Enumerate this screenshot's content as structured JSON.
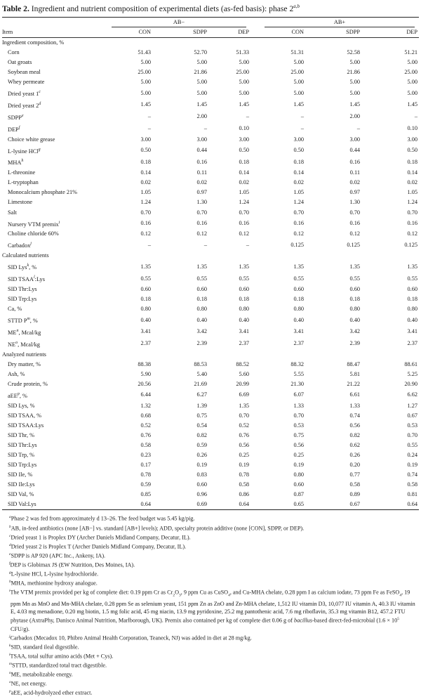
{
  "title": {
    "label": "Table 2.",
    "text": "Ingredient and nutrient composition of experimental diets (as-fed basis): phase 2",
    "sup": "a,b"
  },
  "groups": [
    "AB−",
    "AB+"
  ],
  "item_header": "Item",
  "columns": [
    "CON",
    "SDPP",
    "DEP",
    "CON",
    "SDPP",
    "DEP"
  ],
  "rows": [
    {
      "type": "section",
      "label": "Ingredient composition, %"
    },
    {
      "label": "Corn",
      "sup": "",
      "values": [
        "51.43",
        "52.70",
        "51.33",
        "51.31",
        "52.58",
        "51.21"
      ]
    },
    {
      "label": "Oat groats",
      "sup": "",
      "values": [
        "5.00",
        "5.00",
        "5.00",
        "5.00",
        "5.00",
        "5.00"
      ]
    },
    {
      "label": "Soybean meal",
      "sup": "",
      "values": [
        "25.00",
        "21.86",
        "25.00",
        "25.00",
        "21.86",
        "25.00"
      ]
    },
    {
      "label": "Whey permeate",
      "sup": "",
      "values": [
        "5.00",
        "5.00",
        "5.00",
        "5.00",
        "5.00",
        "5.00"
      ]
    },
    {
      "label": "Dried yeast 1",
      "sup": "c",
      "values": [
        "5.00",
        "5.00",
        "5.00",
        "5.00",
        "5.00",
        "5.00"
      ]
    },
    {
      "label": "Dried yeast 2",
      "sup": "d",
      "values": [
        "1.45",
        "1.45",
        "1.45",
        "1.45",
        "1.45",
        "1.45"
      ]
    },
    {
      "label": "SDPP",
      "sup": "e",
      "values": [
        "–",
        "2.00",
        "–",
        "–",
        "2.00",
        "–"
      ]
    },
    {
      "label": "DEP",
      "sup": "f",
      "values": [
        "–",
        "–",
        "0.10",
        "–",
        "–",
        "0.10"
      ]
    },
    {
      "label": "Choice white grease",
      "sup": "",
      "values": [
        "3.00",
        "3.00",
        "3.00",
        "3.00",
        "3.00",
        "3.00"
      ]
    },
    {
      "label": "L-lysine HCl",
      "sup": "g",
      "values": [
        "0.50",
        "0.44",
        "0.50",
        "0.50",
        "0.44",
        "0.50"
      ]
    },
    {
      "label": "MHA",
      "sup": "h",
      "values": [
        "0.18",
        "0.16",
        "0.18",
        "0.18",
        "0.16",
        "0.18"
      ]
    },
    {
      "label": "L-threonine",
      "sup": "",
      "values": [
        "0.14",
        "0.11",
        "0.14",
        "0.14",
        "0.11",
        "0.14"
      ]
    },
    {
      "label": "L-tryptophan",
      "sup": "",
      "values": [
        "0.02",
        "0.02",
        "0.02",
        "0.02",
        "0.02",
        "0.02"
      ]
    },
    {
      "label": "Monocalcium phosphate 21%",
      "sup": "",
      "values": [
        "1.05",
        "0.97",
        "1.05",
        "1.05",
        "0.97",
        "1.05"
      ]
    },
    {
      "label": "Limestone",
      "sup": "",
      "values": [
        "1.24",
        "1.30",
        "1.24",
        "1.24",
        "1.30",
        "1.24"
      ]
    },
    {
      "label": "Salt",
      "sup": "",
      "values": [
        "0.70",
        "0.70",
        "0.70",
        "0.70",
        "0.70",
        "0.70"
      ]
    },
    {
      "label": "Nursery VTM premix",
      "sup": "i",
      "values": [
        "0.16",
        "0.16",
        "0.16",
        "0.16",
        "0.16",
        "0.16"
      ]
    },
    {
      "label": "Choline chloride 60%",
      "sup": "",
      "values": [
        "0.12",
        "0.12",
        "0.12",
        "0.12",
        "0.12",
        "0.12"
      ]
    },
    {
      "label": "Carbadox",
      "sup": "j",
      "values": [
        "–",
        "–",
        "–",
        "0.125",
        "0.125",
        "0.125"
      ]
    },
    {
      "type": "section",
      "label": "Calculated nutrients"
    },
    {
      "label": "SID Lys",
      "sup": "k",
      "suffix": ", %",
      "values": [
        "1.35",
        "1.35",
        "1.35",
        "1.35",
        "1.35",
        "1.35"
      ]
    },
    {
      "label": "SID TSAA",
      "sup": "l",
      "suffix": ":Lys",
      "values": [
        "0.55",
        "0.55",
        "0.55",
        "0.55",
        "0.55",
        "0.55"
      ]
    },
    {
      "label": "SID Thr:Lys",
      "sup": "",
      "values": [
        "0.60",
        "0.60",
        "0.60",
        "0.60",
        "0.60",
        "0.60"
      ]
    },
    {
      "label": "SID Trp:Lys",
      "sup": "",
      "values": [
        "0.18",
        "0.18",
        "0.18",
        "0.18",
        "0.18",
        "0.18"
      ]
    },
    {
      "label": "Ca, %",
      "sup": "",
      "values": [
        "0.80",
        "0.80",
        "0.80",
        "0.80",
        "0.80",
        "0.80"
      ]
    },
    {
      "label": "STTD P",
      "sup": "m",
      "suffix": ", %",
      "values": [
        "0.40",
        "0.40",
        "0.40",
        "0.40",
        "0.40",
        "0.40"
      ]
    },
    {
      "label": "ME",
      "sup": "n",
      "suffix": ", Mcal/kg",
      "values": [
        "3.41",
        "3.42",
        "3.41",
        "3.41",
        "3.42",
        "3.41"
      ]
    },
    {
      "label": "NE",
      "sup": "o",
      "suffix": ", Mcal/kg",
      "values": [
        "2.37",
        "2.39",
        "2.37",
        "2.37",
        "2.39",
        "2.37"
      ]
    },
    {
      "type": "section",
      "label": "Analyzed nutrients"
    },
    {
      "label": "Dry matter, %",
      "sup": "",
      "values": [
        "88.38",
        "88.53",
        "88.52",
        "88.32",
        "88.47",
        "88.61"
      ]
    },
    {
      "label": "Ash, %",
      "sup": "",
      "values": [
        "5.90",
        "5.40",
        "5.60",
        "5.55",
        "5.81",
        "5.25"
      ]
    },
    {
      "label": "Crude protein, %",
      "sup": "",
      "values": [
        "20.56",
        "21.69",
        "20.99",
        "21.30",
        "21.22",
        "20.90"
      ]
    },
    {
      "label": "aEE",
      "sup": "p",
      "suffix": ", %",
      "values": [
        "6.44",
        "6.27",
        "6.69",
        "6.07",
        "6.61",
        "6.62"
      ]
    },
    {
      "label": "SID Lys, %",
      "sup": "",
      "values": [
        "1.32",
        "1.39",
        "1.35",
        "1.33",
        "1.33",
        "1.27"
      ]
    },
    {
      "label": "SID TSAA, %",
      "sup": "",
      "values": [
        "0.68",
        "0.75",
        "0.70",
        "0.70",
        "0.74",
        "0.67"
      ]
    },
    {
      "label": "SID TSAA:Lys",
      "sup": "",
      "values": [
        "0.52",
        "0.54",
        "0.52",
        "0.53",
        "0.56",
        "0.53"
      ]
    },
    {
      "label": "SID Thr, %",
      "sup": "",
      "values": [
        "0.76",
        "0.82",
        "0.76",
        "0.75",
        "0.82",
        "0.70"
      ]
    },
    {
      "label": "SID Thr:Lys",
      "sup": "",
      "values": [
        "0.58",
        "0.59",
        "0.56",
        "0.56",
        "0.62",
        "0.55"
      ]
    },
    {
      "label": "SID Trp, %",
      "sup": "",
      "values": [
        "0.23",
        "0.26",
        "0.25",
        "0.25",
        "0.26",
        "0.24"
      ]
    },
    {
      "label": "SID Trp:Lys",
      "sup": "",
      "values": [
        "0.17",
        "0.19",
        "0.19",
        "0.19",
        "0.20",
        "0.19"
      ]
    },
    {
      "label": "SID Ile, %",
      "sup": "",
      "values": [
        "0.78",
        "0.83",
        "0.78",
        "0.80",
        "0.77",
        "0.74"
      ]
    },
    {
      "label": "SID Ile:Lys",
      "sup": "",
      "values": [
        "0.59",
        "0.60",
        "0.58",
        "0.60",
        "0.58",
        "0.58"
      ]
    },
    {
      "label": "SID Val, %",
      "sup": "",
      "values": [
        "0.85",
        "0.96",
        "0.86",
        "0.87",
        "0.89",
        "0.81"
      ]
    },
    {
      "label": "SID Val:Lys",
      "sup": "",
      "values": [
        "0.64",
        "0.69",
        "0.64",
        "0.65",
        "0.67",
        "0.64"
      ]
    }
  ],
  "footnotes": [
    {
      "sup": "a",
      "parts": [
        [
          "t",
          "Phase 2 was fed from approximately d 13–26. The feed budget was 5.45 kg/pig."
        ]
      ]
    },
    {
      "sup": "b",
      "parts": [
        [
          "t",
          "AB, in-feed antibiotics (none [AB−] vs. standard [AB+] levels); ADD, specialty protein additive (none [CON], SDPP, or DEP)."
        ]
      ]
    },
    {
      "sup": "c",
      "parts": [
        [
          "t",
          "Dried yeast 1 is Proplex DY (Archer Daniels Midland Company, Decatur, IL)."
        ]
      ]
    },
    {
      "sup": "d",
      "parts": [
        [
          "t",
          "Dried yeast 2 is Proplex T (Archer Daniels Midland Company, Decatur, IL)."
        ]
      ]
    },
    {
      "sup": "e",
      "parts": [
        [
          "t",
          "SDPP is AP 920 (APC Inc., Ankeny, IA)."
        ]
      ]
    },
    {
      "sup": "f",
      "parts": [
        [
          "t",
          "DEP is Globimax JS (EW Nutrition, Des Moines, IA)."
        ]
      ]
    },
    {
      "sup": "g",
      "parts": [
        [
          "t",
          "L-lysine HCl, L-lysine hydrochloride."
        ]
      ]
    },
    {
      "sup": "h",
      "parts": [
        [
          "t",
          "MHA, methionine hydroxy analogue."
        ]
      ]
    },
    {
      "sup": "i",
      "long": true,
      "parts": [
        [
          "t",
          "The VTM premix provided per kg of complete diet: 0.19 ppm Cr as Cr"
        ],
        [
          "sub",
          "2"
        ],
        [
          "t",
          "O"
        ],
        [
          "sub",
          "3"
        ],
        [
          "t",
          ", 9 ppm Cu as CuSO"
        ],
        [
          "sub",
          "4"
        ],
        [
          "t",
          ", and Cu-MHA chelate, 0.28 ppm I as calcium iodate, 73 ppm Fe as FeSO"
        ],
        [
          "sub",
          "4"
        ],
        [
          "t",
          ", 19 ppm Mn as MnO and Mn-MHA chelate, 0.28 ppm Se as selenium yeast, 151 ppm Zn as ZnO and Zn-MHA chelate, 1,512 IU vitamin D3, 10,077 IU vitamin A, 40.3 IU vitamin E, 4.03 mg menadione, 0.20 mg biotin, 1.5 mg folic acid, 45 mg niacin, 13.9 mg pyridoxine, 25.2 mg pantothenic acid, 7.6 mg riboflavin, 35.3 mg vitamin B12, 457.2 FTU phytase (AxtraPhy, Danisco Animal Nutrition, Marlborough, UK). Premix also contained per kg of complete diet 0.06 g of "
        ],
        [
          "i",
          "bacillus"
        ],
        [
          "t",
          "-based direct-fed-microbial (1.6 × 10"
        ],
        [
          "sup",
          "5"
        ],
        [
          "t",
          " CFU/g)."
        ]
      ]
    },
    {
      "sup": "j",
      "parts": [
        [
          "t",
          "Carbadox (Mecadox 10, Phibro Animal Health Corporation, Teaneck, NJ) was added in diet at 28 mg/kg."
        ]
      ]
    },
    {
      "sup": "k",
      "parts": [
        [
          "t",
          "SID, standard ileal digestible."
        ]
      ]
    },
    {
      "sup": "l",
      "parts": [
        [
          "t",
          "TSAA, total sulfur amino acids (Met + Cys)."
        ]
      ]
    },
    {
      "sup": "m",
      "parts": [
        [
          "t",
          "STTD, standardized total tract digestible."
        ]
      ]
    },
    {
      "sup": "n",
      "parts": [
        [
          "t",
          "ME, metabolizable energy."
        ]
      ]
    },
    {
      "sup": "o",
      "parts": [
        [
          "t",
          "NE, net energy."
        ]
      ]
    },
    {
      "sup": "p",
      "parts": [
        [
          "t",
          "aEE, acid-hydrolyzed ether extract."
        ]
      ]
    }
  ]
}
